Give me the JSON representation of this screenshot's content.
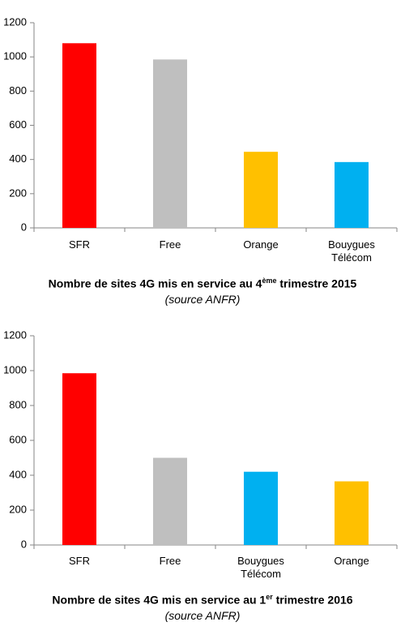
{
  "chart_data": [
    {
      "type": "bar",
      "title": [
        "Nombre de sites 4G mis en service au 4",
        "ème",
        " trimestre 2015"
      ],
      "subtitle": "(source ANFR)",
      "categories": [
        "SFR",
        "Free",
        "Orange",
        "Bouygues Télécom"
      ],
      "values": [
        1080,
        985,
        445,
        385
      ],
      "colors": [
        "#ff0000",
        "#bfbfbf",
        "#ffc000",
        "#00b0f0"
      ],
      "ylim": [
        0,
        1200
      ],
      "yticks": [
        0,
        200,
        400,
        600,
        800,
        1000,
        1200
      ],
      "grid": false
    },
    {
      "type": "bar",
      "title": [
        "Nombre de sites 4G mis en service au 1",
        "er",
        " trimestre 2016"
      ],
      "subtitle": "(source ANFR)",
      "categories": [
        "SFR",
        "Free",
        "Bouygues Télécom",
        "Orange"
      ],
      "values": [
        985,
        500,
        420,
        365
      ],
      "colors": [
        "#ff0000",
        "#bfbfbf",
        "#00b0f0",
        "#ffc000"
      ],
      "ylim": [
        0,
        1200
      ],
      "yticks": [
        0,
        200,
        400,
        600,
        800,
        1000,
        1200
      ],
      "grid": false
    }
  ]
}
